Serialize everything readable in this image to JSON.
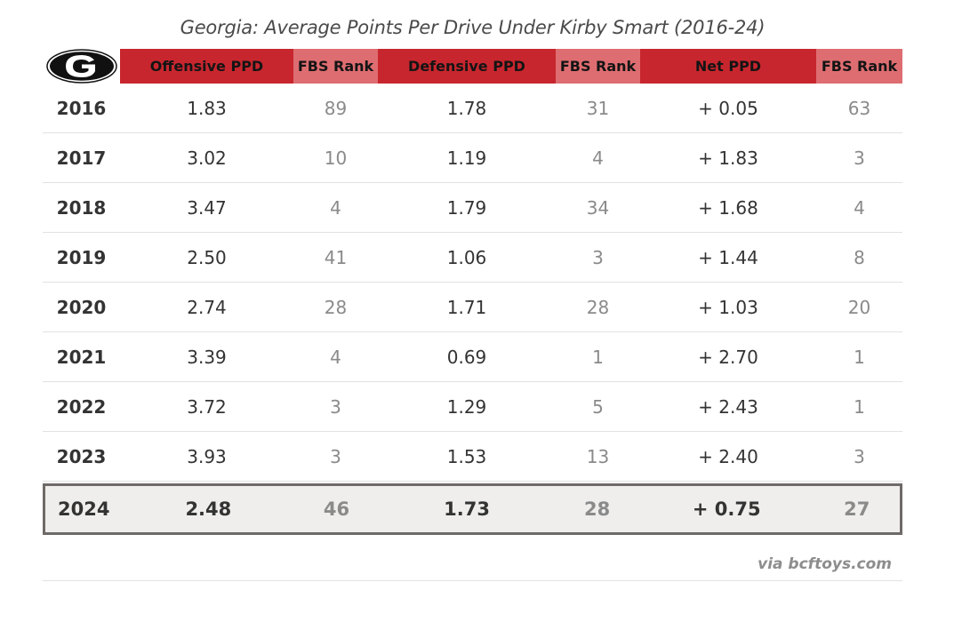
{
  "title": "Georgia: Average Points Per Drive Under Kirby Smart (2016-24)",
  "source": "via bcftoys.com",
  "colors": {
    "header_dark": "#c8262e",
    "header_light": "#de6d71",
    "highlight_row_bg": "#efeeed",
    "highlight_row_border": "#6e6a68",
    "rank_text": "#8a8a8a"
  },
  "logo": {
    "icon": "georgia-g-logo-icon"
  },
  "chart_data": {
    "type": "table",
    "title": "Georgia: Average Points Per Drive Under Kirby Smart (2016-24)",
    "columns": [
      "",
      "Offensive PPD",
      "FBS Rank",
      "Defensive PPD",
      "FBS Rank",
      "Net PPD",
      "FBS Rank"
    ],
    "rows": [
      [
        "2016",
        "1.83",
        "89",
        "1.78",
        "31",
        "+ 0.05",
        "63"
      ],
      [
        "2017",
        "3.02",
        "10",
        "1.19",
        "4",
        "+ 1.83",
        "3"
      ],
      [
        "2018",
        "3.47",
        "4",
        "1.79",
        "34",
        "+ 1.68",
        "4"
      ],
      [
        "2019",
        "2.50",
        "41",
        "1.06",
        "3",
        "+ 1.44",
        "8"
      ],
      [
        "2020",
        "2.74",
        "28",
        "1.71",
        "28",
        "+ 1.03",
        "20"
      ],
      [
        "2021",
        "3.39",
        "4",
        "0.69",
        "1",
        "+ 2.70",
        "1"
      ],
      [
        "2022",
        "3.72",
        "3",
        "1.29",
        "5",
        "+ 2.43",
        "1"
      ],
      [
        "2023",
        "3.93",
        "3",
        "1.53",
        "13",
        "+ 2.40",
        "3"
      ],
      [
        "2024",
        "2.48",
        "46",
        "1.73",
        "28",
        "+ 0.75",
        "27"
      ]
    ],
    "highlighted_row": "2024"
  }
}
